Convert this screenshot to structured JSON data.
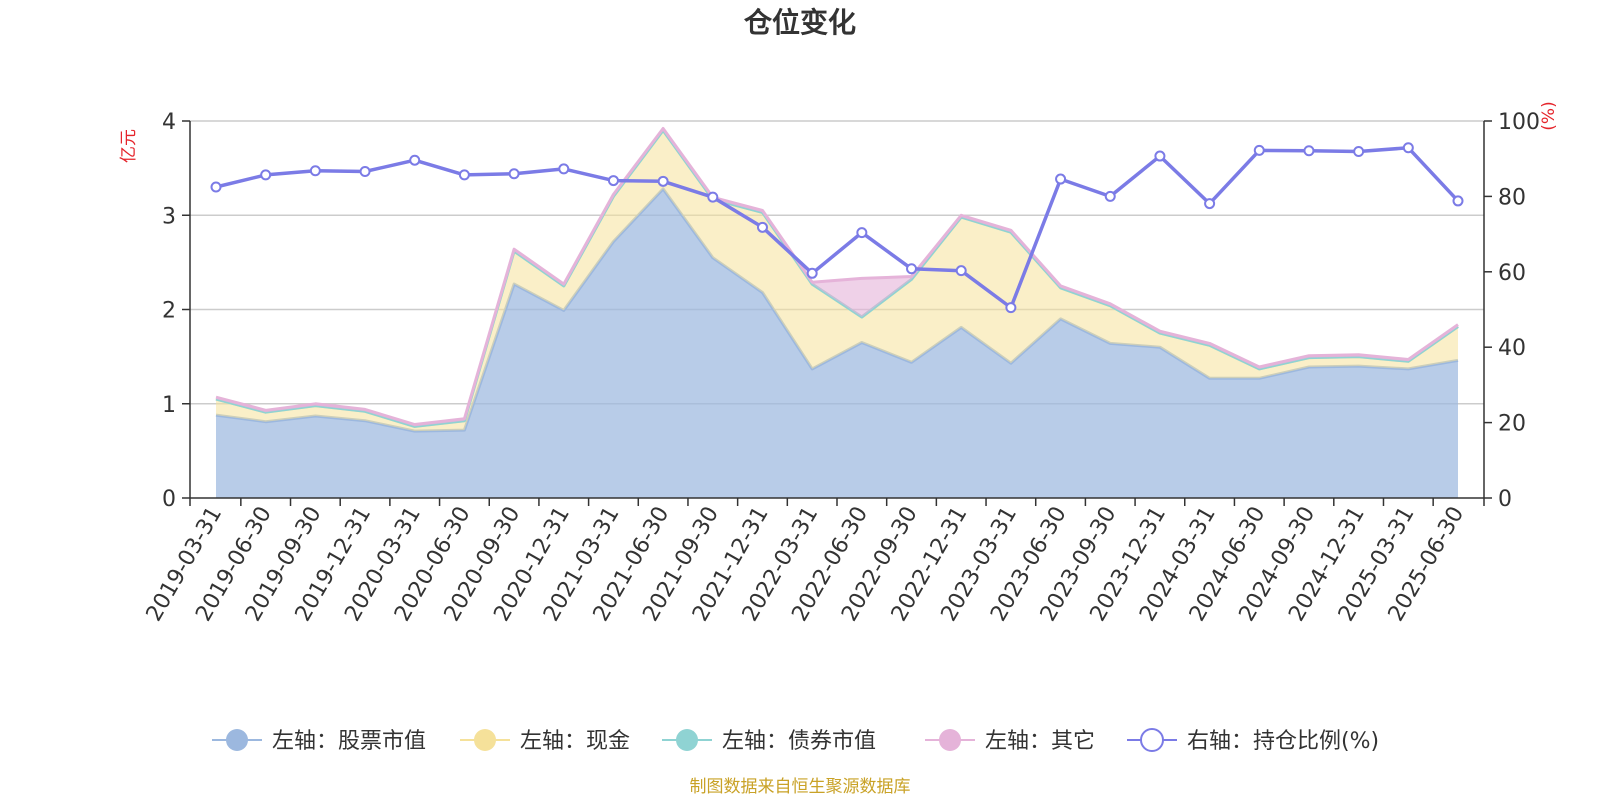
{
  "colors": {
    "stock": "#9cb8df",
    "cash": "#f5e19a",
    "bond": "#8fd3d3",
    "other": "#e5b3d9",
    "ratio": "#7b7be6",
    "unit_label": "#e5242b",
    "source": "#c9a227"
  },
  "footer": {
    "source": "制图数据来自恒生聚源数据库"
  },
  "chart_data": {
    "type": "area",
    "title": "仓位变化",
    "y_left_unit": "亿元",
    "y_right_unit": "(%)",
    "y_left_range": [
      0,
      4
    ],
    "y_left_ticks": [
      "0",
      "1",
      "2",
      "3",
      "4"
    ],
    "y_right_range": [
      0,
      100
    ],
    "y_right_ticks": [
      "0",
      "20",
      "40",
      "60",
      "80",
      "100"
    ],
    "grid": true,
    "legend_position": "bottom",
    "categories": [
      "2019-03-31",
      "2019-06-30",
      "2019-09-30",
      "2019-12-31",
      "2020-03-31",
      "2020-06-30",
      "2020-09-30",
      "2020-12-31",
      "2021-03-31",
      "2021-06-30",
      "2021-09-30",
      "2021-12-31",
      "2022-03-31",
      "2022-06-30",
      "2022-09-30",
      "2022-12-31",
      "2023-03-31",
      "2023-06-30",
      "2023-09-30",
      "2023-12-31",
      "2024-03-31",
      "2024-06-30",
      "2024-09-30",
      "2024-12-31",
      "2025-03-31",
      "2025-06-30"
    ],
    "series": [
      {
        "name": "左轴：股票市值",
        "axis": "left",
        "values": [
          0.88,
          0.81,
          0.87,
          0.82,
          0.71,
          0.72,
          2.27,
          1.99,
          2.72,
          3.28,
          2.55,
          2.18,
          1.37,
          1.65,
          1.44,
          1.81,
          1.43,
          1.9,
          1.64,
          1.6,
          1.27,
          1.27,
          1.39,
          1.4,
          1.37,
          1.46
        ]
      },
      {
        "name": "左轴：现金",
        "axis": "left",
        "values": [
          0.17,
          0.1,
          0.11,
          0.1,
          0.05,
          0.1,
          0.35,
          0.26,
          0.48,
          0.62,
          0.62,
          0.85,
          0.9,
          0.27,
          0.88,
          1.17,
          1.39,
          0.33,
          0.4,
          0.15,
          0.35,
          0.1,
          0.1,
          0.1,
          0.08,
          0.36
        ]
      },
      {
        "name": "左轴：债券市值",
        "axis": "left",
        "values": [
          0,
          0,
          0,
          0,
          0,
          0,
          0,
          0,
          0,
          0,
          0,
          0,
          0,
          0,
          0,
          0,
          0,
          0,
          0,
          0,
          0,
          0,
          0,
          0,
          0,
          0
        ]
      },
      {
        "name": "左轴：其它",
        "axis": "left",
        "values": [
          0.02,
          0.02,
          0.02,
          0.02,
          0.02,
          0.02,
          0.02,
          0.02,
          0.02,
          0.02,
          0.02,
          0.02,
          0.02,
          0.41,
          0.03,
          0.02,
          0.02,
          0.02,
          0.02,
          0.02,
          0.02,
          0.02,
          0.02,
          0.02,
          0.02,
          0.02
        ]
      },
      {
        "name": "右轴：持仓比例(%)",
        "axis": "right",
        "values": [
          82.5,
          85.7,
          86.8,
          86.6,
          89.6,
          85.7,
          86.0,
          87.3,
          84.2,
          84.0,
          79.8,
          71.8,
          59.6,
          70.4,
          60.8,
          60.3,
          50.5,
          84.6,
          80.0,
          90.7,
          78.1,
          92.2,
          92.1,
          91.9,
          92.9,
          78.8
        ]
      }
    ]
  }
}
